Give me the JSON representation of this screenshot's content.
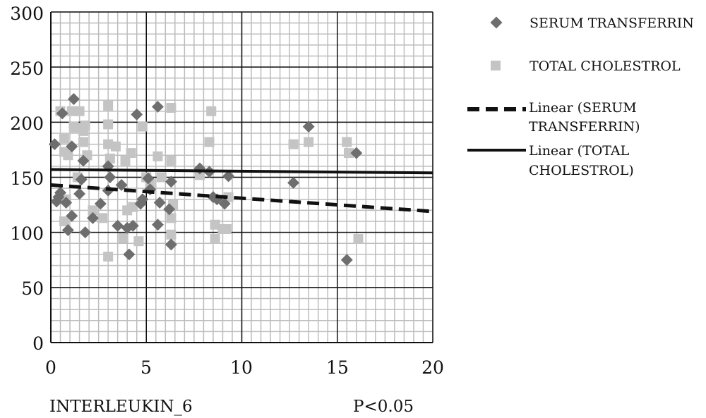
{
  "colors": {
    "serum_marker": "#6e6e6e",
    "cholesterol_marker": "#c4c4c4",
    "major_grid": "#111111",
    "minor_grid": "#bdbdbd",
    "trend_line": "#111111"
  },
  "chart_data": {
    "type": "scatter",
    "title": "",
    "xlabel": "INTERLEUKIN_6",
    "ylabel": "",
    "annotation": "P<0.05",
    "xlim": [
      0,
      20
    ],
    "ylim": [
      0,
      300
    ],
    "x_ticks": [
      "0",
      "5",
      "10",
      "15",
      "20"
    ],
    "y_ticks": [
      "0",
      "50",
      "100",
      "150",
      "200",
      "250",
      "300"
    ],
    "grid": true,
    "legend_position": "right",
    "series": [
      {
        "name": "SERUM TRANSFERRIN",
        "marker": "diamond",
        "points": [
          [
            0.2,
            180
          ],
          [
            0.3,
            128
          ],
          [
            0.4,
            132
          ],
          [
            0.5,
            136
          ],
          [
            0.6,
            208
          ],
          [
            0.8,
            127
          ],
          [
            0.9,
            102
          ],
          [
            1.1,
            115
          ],
          [
            1.1,
            178
          ],
          [
            1.2,
            221
          ],
          [
            1.5,
            135
          ],
          [
            1.6,
            148
          ],
          [
            1.7,
            165
          ],
          [
            1.8,
            100
          ],
          [
            2.2,
            113
          ],
          [
            2.6,
            126
          ],
          [
            3.0,
            160
          ],
          [
            3.0,
            138
          ],
          [
            3.1,
            150
          ],
          [
            3.5,
            106
          ],
          [
            3.7,
            143
          ],
          [
            4.0,
            104
          ],
          [
            4.1,
            80
          ],
          [
            4.3,
            106
          ],
          [
            4.5,
            207
          ],
          [
            4.7,
            126
          ],
          [
            4.8,
            130
          ],
          [
            5.1,
            149
          ],
          [
            5.2,
            139
          ],
          [
            5.6,
            214
          ],
          [
            5.6,
            107
          ],
          [
            5.7,
            127
          ],
          [
            6.2,
            121
          ],
          [
            6.3,
            146
          ],
          [
            6.3,
            89
          ],
          [
            7.8,
            158
          ],
          [
            8.3,
            155
          ],
          [
            8.5,
            132
          ],
          [
            8.7,
            130
          ],
          [
            9.1,
            126
          ],
          [
            9.3,
            151
          ],
          [
            12.7,
            145
          ],
          [
            13.5,
            196
          ],
          [
            15.5,
            75
          ],
          [
            16.0,
            172
          ]
        ]
      },
      {
        "name": "TOTAL CHOLESTROL",
        "marker": "square",
        "points": [
          [
            0.5,
            210
          ],
          [
            0.7,
            185
          ],
          [
            0.7,
            173
          ],
          [
            0.8,
            130
          ],
          [
            0.7,
            110
          ],
          [
            0.9,
            170
          ],
          [
            1.1,
            210
          ],
          [
            1.2,
            196
          ],
          [
            1.3,
            195
          ],
          [
            1.4,
            150
          ],
          [
            1.5,
            210
          ],
          [
            1.7,
            192
          ],
          [
            1.7,
            182
          ],
          [
            1.8,
            197
          ],
          [
            1.9,
            170
          ],
          [
            2.2,
            120
          ],
          [
            2.7,
            113
          ],
          [
            3.0,
            215
          ],
          [
            3.0,
            198
          ],
          [
            3.0,
            180
          ],
          [
            3.1,
            167
          ],
          [
            3.4,
            178
          ],
          [
            3.0,
            78
          ],
          [
            3.8,
            95
          ],
          [
            3.9,
            165
          ],
          [
            4.2,
            172
          ],
          [
            4.0,
            120
          ],
          [
            4.3,
            123
          ],
          [
            4.6,
            92
          ],
          [
            4.8,
            196
          ],
          [
            5.0,
            150
          ],
          [
            5.2,
            144
          ],
          [
            5.6,
            169
          ],
          [
            5.8,
            150
          ],
          [
            6.3,
            213
          ],
          [
            6.3,
            165
          ],
          [
            6.3,
            113
          ],
          [
            6.3,
            98
          ],
          [
            6.4,
            125
          ],
          [
            7.8,
            152
          ],
          [
            8.3,
            182
          ],
          [
            8.4,
            210
          ],
          [
            8.6,
            107
          ],
          [
            8.6,
            94
          ],
          [
            9.0,
            103
          ],
          [
            9.2,
            103
          ],
          [
            9.3,
            132
          ],
          [
            12.7,
            180
          ],
          [
            13.5,
            182
          ],
          [
            15.5,
            182
          ],
          [
            15.6,
            172
          ],
          [
            16.1,
            94
          ]
        ]
      }
    ],
    "trendlines": [
      {
        "name": "Linear (SERUM TRANSFERRIN)",
        "style": "dashed",
        "from": [
          0,
          143
        ],
        "to": [
          20,
          119
        ]
      },
      {
        "name": "Linear (TOTAL CHOLESTROL)",
        "style": "solid",
        "from": [
          0,
          157
        ],
        "to": [
          20,
          154
        ]
      }
    ],
    "legend": {
      "serum_label": "SERUM TRANSFERRIN",
      "cholesterol_label": "TOTAL CHOLESTROL",
      "linear_serum_line1": "Linear (SERUM",
      "linear_serum_line2": "TRANSFERRIN)",
      "linear_chol_line1": "Linear (TOTAL",
      "linear_chol_line2": "CHOLESTROL)"
    }
  }
}
